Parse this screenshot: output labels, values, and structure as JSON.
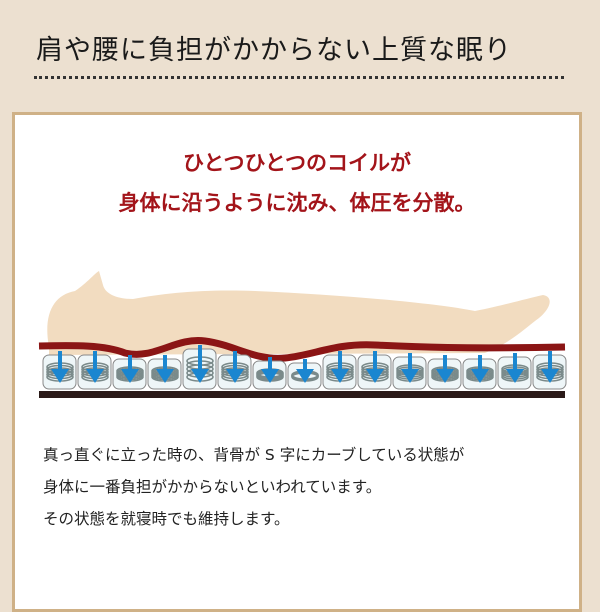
{
  "title": "肩や腰に負担がかからない上質な眠り",
  "lead": [
    "ひとつひとつのコイルが",
    "身体に沿うように沈み、体圧を分散。"
  ],
  "body": [
    "真っ直ぐに立った時の、背骨が S 字にカーブしている状態が",
    "身体に一番負担がかからないといわれています。",
    "その状態を就寝時でも維持します。"
  ],
  "colors": {
    "lead": "#a3141a",
    "mattress_top": "#8b1515",
    "body_silhouette": "#f2dcc0",
    "arrow": "#1a86d0",
    "base": "#2a1a18"
  }
}
